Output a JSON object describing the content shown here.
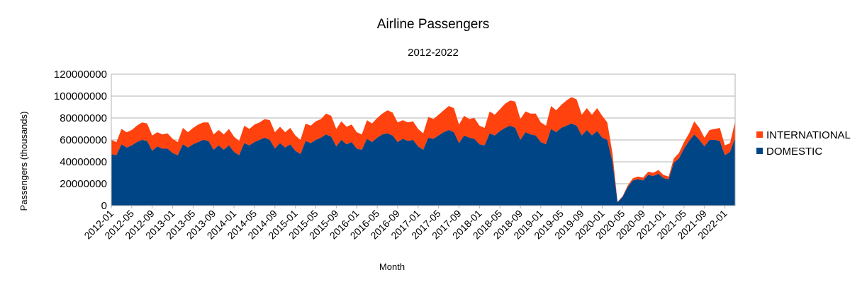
{
  "chart_data": {
    "type": "area",
    "stacked": true,
    "title": "Airline Passengers",
    "subtitle": "2012-2022",
    "xlabel": "Month",
    "ylabel": "Passengers (thousands)",
    "ylim": [
      0,
      120000000
    ],
    "yticks": [
      "0",
      "20000000",
      "40000000",
      "60000000",
      "80000000",
      "100000000",
      "120000000"
    ],
    "grid": true,
    "legend_position": "right",
    "x": [
      "2012-01",
      "2012-02",
      "2012-03",
      "2012-04",
      "2012-05",
      "2012-06",
      "2012-07",
      "2012-08",
      "2012-09",
      "2012-10",
      "2012-11",
      "2012-12",
      "2013-01",
      "2013-02",
      "2013-03",
      "2013-04",
      "2013-05",
      "2013-06",
      "2013-07",
      "2013-08",
      "2013-09",
      "2013-10",
      "2013-11",
      "2013-12",
      "2014-01",
      "2014-02",
      "2014-03",
      "2014-04",
      "2014-05",
      "2014-06",
      "2014-07",
      "2014-08",
      "2014-09",
      "2014-10",
      "2014-11",
      "2014-12",
      "2015-01",
      "2015-02",
      "2015-03",
      "2015-04",
      "2015-05",
      "2015-06",
      "2015-07",
      "2015-08",
      "2015-09",
      "2015-10",
      "2015-11",
      "2015-12",
      "2016-01",
      "2016-02",
      "2016-03",
      "2016-04",
      "2016-05",
      "2016-06",
      "2016-07",
      "2016-08",
      "2016-09",
      "2016-10",
      "2016-11",
      "2016-12",
      "2017-01",
      "2017-02",
      "2017-03",
      "2017-04",
      "2017-05",
      "2017-06",
      "2017-07",
      "2017-08",
      "2017-09",
      "2017-10",
      "2017-11",
      "2017-12",
      "2018-01",
      "2018-02",
      "2018-03",
      "2018-04",
      "2018-05",
      "2018-06",
      "2018-07",
      "2018-08",
      "2018-09",
      "2018-10",
      "2018-11",
      "2018-12",
      "2019-01",
      "2019-02",
      "2019-03",
      "2019-04",
      "2019-05",
      "2019-06",
      "2019-07",
      "2019-08",
      "2019-09",
      "2019-10",
      "2019-11",
      "2019-12",
      "2020-01",
      "2020-02",
      "2020-03",
      "2020-04",
      "2020-05",
      "2020-06",
      "2020-07",
      "2020-08",
      "2020-09",
      "2020-10",
      "2020-11",
      "2020-12",
      "2021-01",
      "2021-02",
      "2021-03",
      "2021-04",
      "2021-05",
      "2021-06",
      "2021-07",
      "2021-08",
      "2021-09",
      "2021-10",
      "2021-11",
      "2021-12",
      "2022-01",
      "2022-02",
      "2022-03"
    ],
    "series": [
      {
        "name": "DOMESTIC",
        "color": "#004586",
        "values": [
          47000000,
          46000000,
          56000000,
          53000000,
          55000000,
          58000000,
          60000000,
          59000000,
          50000000,
          54000000,
          52000000,
          52000000,
          48000000,
          46000000,
          56000000,
          53000000,
          56000000,
          58000000,
          60000000,
          59000000,
          51000000,
          55000000,
          51000000,
          55000000,
          49000000,
          46000000,
          57000000,
          55000000,
          58000000,
          60000000,
          62000000,
          60000000,
          52000000,
          57000000,
          53000000,
          56000000,
          50000000,
          47000000,
          59000000,
          57000000,
          60000000,
          62000000,
          65000000,
          63000000,
          54000000,
          60000000,
          56000000,
          58000000,
          52000000,
          51000000,
          61000000,
          58000000,
          62000000,
          65000000,
          66000000,
          64000000,
          58000000,
          61000000,
          59000000,
          60000000,
          54000000,
          51000000,
          62000000,
          61000000,
          64000000,
          67000000,
          69000000,
          67000000,
          57000000,
          64000000,
          62000000,
          61000000,
          56000000,
          55000000,
          66000000,
          64000000,
          68000000,
          71000000,
          73000000,
          71000000,
          60000000,
          67000000,
          65000000,
          64000000,
          58000000,
          56000000,
          70000000,
          67000000,
          71000000,
          73000000,
          75000000,
          73000000,
          64000000,
          69000000,
          64000000,
          68000000,
          62000000,
          60000000,
          40000000,
          3000000,
          8000000,
          17000000,
          23000000,
          24000000,
          23000000,
          28000000,
          27000000,
          29000000,
          25000000,
          24000000,
          39000000,
          43000000,
          52000000,
          59000000,
          65000000,
          60000000,
          54000000,
          60000000,
          60000000,
          59000000,
          46000000,
          49000000,
          62000000
        ]
      },
      {
        "name": "INTERNATIONAL",
        "color": "#ff420e",
        "values": [
          13000000,
          12000000,
          14000000,
          14000000,
          14000000,
          15000000,
          16000000,
          16000000,
          14000000,
          13000000,
          13000000,
          14000000,
          13000000,
          12000000,
          15000000,
          14000000,
          15000000,
          16000000,
          16000000,
          17000000,
          14000000,
          14000000,
          14000000,
          15000000,
          14000000,
          13000000,
          16000000,
          15000000,
          16000000,
          16000000,
          17000000,
          18000000,
          15000000,
          15000000,
          14000000,
          15000000,
          14000000,
          13000000,
          16000000,
          16000000,
          17000000,
          17000000,
          19000000,
          19000000,
          16000000,
          17000000,
          16000000,
          16000000,
          15000000,
          14000000,
          17000000,
          17000000,
          18000000,
          19000000,
          21000000,
          21000000,
          18000000,
          17000000,
          17000000,
          17000000,
          16000000,
          15000000,
          19000000,
          18000000,
          19000000,
          20000000,
          22000000,
          22000000,
          17000000,
          18000000,
          17000000,
          19000000,
          17000000,
          16000000,
          20000000,
          19000000,
          20000000,
          22000000,
          23000000,
          24000000,
          19000000,
          19000000,
          19000000,
          20000000,
          18000000,
          17000000,
          21000000,
          20000000,
          21000000,
          23000000,
          24000000,
          24000000,
          19000000,
          20000000,
          19000000,
          21000000,
          20000000,
          16000000,
          8000000,
          500000,
          600000,
          1500000,
          2000000,
          2500000,
          2500000,
          3000000,
          3000000,
          3500000,
          3000000,
          2500000,
          4000000,
          5000000,
          6000000,
          7000000,
          12000000,
          11000000,
          8000000,
          9000000,
          10000000,
          12000000,
          9000000,
          8000000,
          15000000
        ]
      }
    ]
  }
}
